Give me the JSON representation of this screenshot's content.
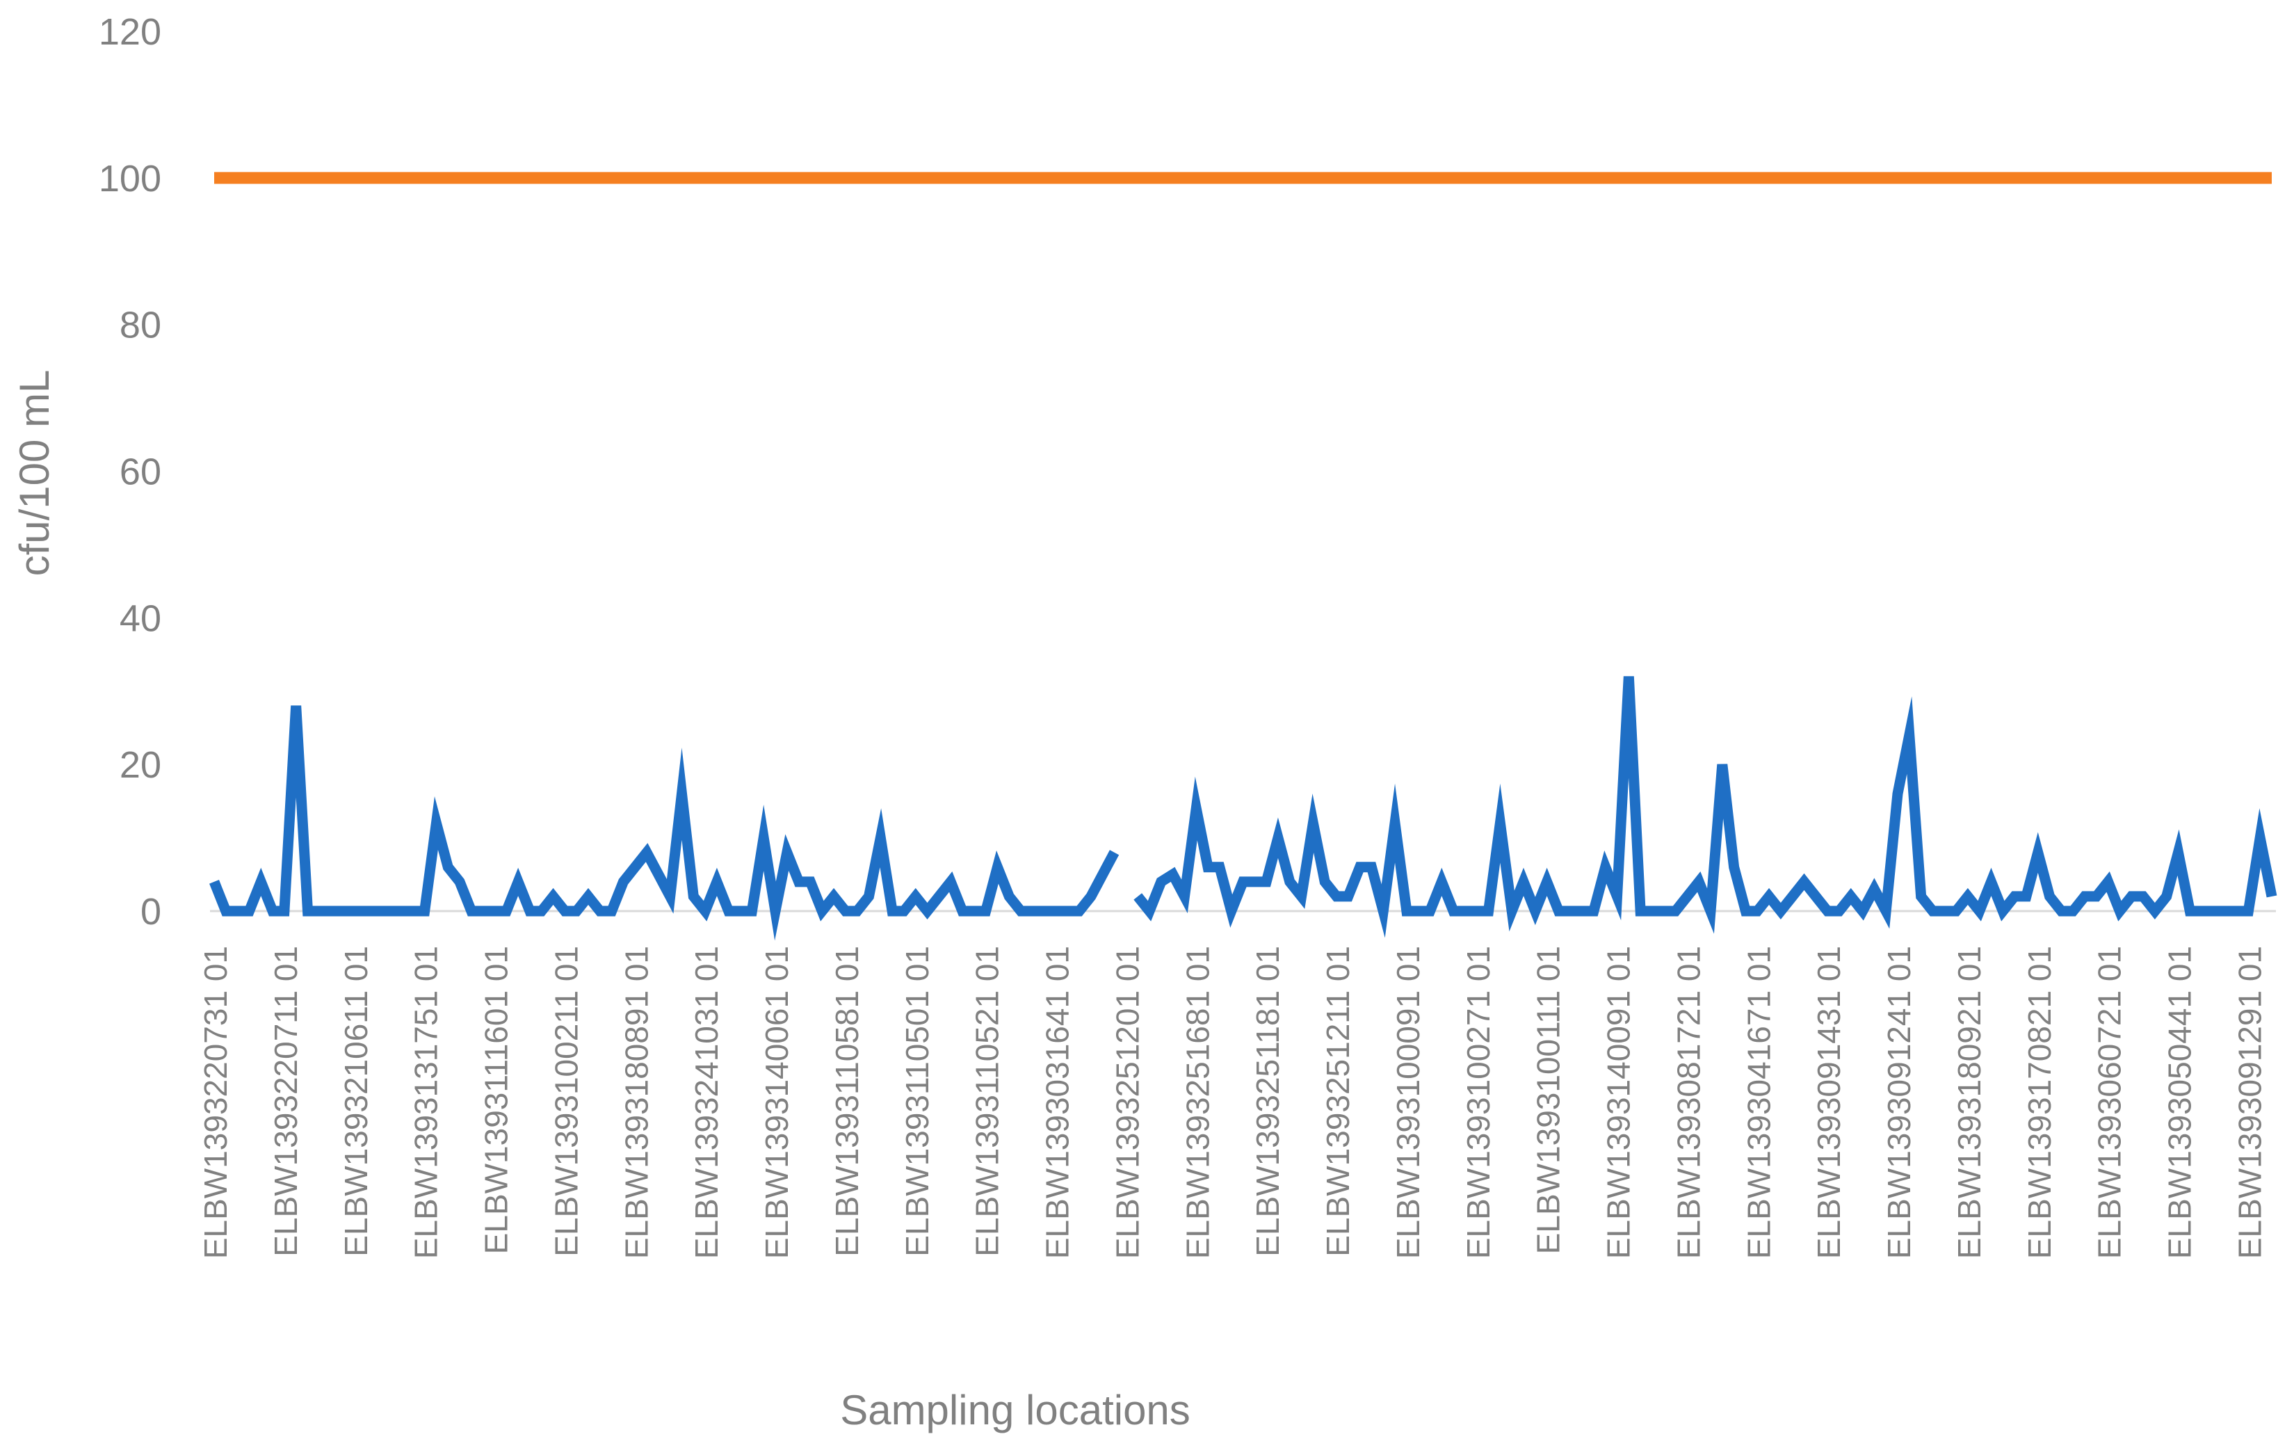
{
  "chart_data": {
    "type": "line",
    "xlabel": "Sampling locations",
    "ylabel": "cfu/100 mL",
    "ylim": [
      0,
      120
    ],
    "yticks": [
      0,
      20,
      40,
      60,
      80,
      100,
      120
    ],
    "grid": false,
    "legend": "none",
    "tick_labels": [
      "ELBW1393220731 01",
      "ELBW1393220711 01",
      "ELBW1393210611 01",
      "ELBW1393131751 01",
      "ELBW1393111601 01",
      "ELBW1393100211 01",
      "ELBW1393180891 01",
      "ELBW1393241031 01",
      "ELBW1393140061 01",
      "ELBW1393110581 01",
      "ELBW1393110501 01",
      "ELBW1393110521 01",
      "ELBW1393031641 01",
      "ELBW1393251201 01",
      "ELBW1393251681 01",
      "ELBW1393251181 01",
      "ELBW1393251211 01",
      "ELBW1393100091 01",
      "ELBW1393100271 01",
      "ELBW1393100111 01",
      "ELBW1393140091 01",
      "ELBW1393081721 01",
      "ELBW1393041671 01",
      "ELBW1393091431 01",
      "ELBW1393091241 01",
      "ELBW1393180921 01",
      "ELBW1393170821 01",
      "ELBW1393060721 01",
      "ELBW1393050441 01",
      "ELBW1393091291 01"
    ],
    "tick_step": 6,
    "series": [
      {
        "color": "#1f6fc5",
        "values": [
          4,
          0,
          0,
          0,
          4,
          0,
          0,
          28,
          0,
          0,
          0,
          0,
          0,
          0,
          0,
          0,
          0,
          0,
          0,
          12,
          6,
          4,
          0,
          0,
          0,
          0,
          4,
          0,
          0,
          2,
          0,
          0,
          2,
          0,
          0,
          4,
          6,
          8,
          5,
          2,
          16,
          2,
          0,
          4,
          0,
          0,
          0,
          10,
          0,
          8,
          4,
          4,
          0,
          2,
          0,
          0,
          2,
          10,
          0,
          0,
          2,
          0,
          2,
          4,
          0,
          0,
          0,
          6,
          2,
          0,
          0,
          0,
          0,
          0,
          0,
          2,
          5,
          8,
          null,
          2,
          0,
          4,
          5,
          2,
          14,
          6,
          6,
          0,
          4,
          4,
          4,
          10,
          4,
          2,
          12,
          4,
          2,
          2,
          6,
          6,
          0,
          12,
          0,
          0,
          0,
          4,
          0,
          0,
          0,
          0,
          12,
          0,
          4,
          0,
          4,
          0,
          0,
          0,
          0,
          6,
          2,
          32,
          0,
          0,
          0,
          0,
          2,
          4,
          0,
          20,
          6,
          0,
          0,
          2,
          0,
          2,
          4,
          2,
          0,
          0,
          2,
          0,
          3,
          0,
          16,
          24,
          2,
          0,
          0,
          0,
          2,
          0,
          4,
          0,
          2,
          2,
          8,
          2,
          0,
          0,
          2,
          2,
          4,
          0,
          2,
          2,
          0,
          2,
          8,
          0,
          0,
          0,
          0,
          0,
          0,
          10,
          2
        ]
      },
      {
        "color": "#f57f20",
        "constant": 100
      }
    ]
  }
}
